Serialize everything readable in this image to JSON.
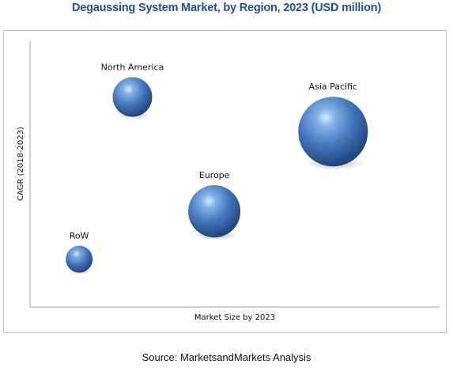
{
  "source": "Source: MarketsandMarkets Analysis",
  "chart_data": {
    "type": "bubble",
    "title": "Degaussing System Market, by Region, 2023 (USD million)",
    "xlabel": "Market Size by 2023",
    "ylabel": "CAGR (2018-2023)",
    "grid": false,
    "axis_tick_labels": false,
    "points": [
      {
        "label": "North America",
        "x": 25,
        "y": 79,
        "size": 25
      },
      {
        "label": "Asia Pacific",
        "x": 74,
        "y": 66,
        "size": 44
      },
      {
        "label": "Europe",
        "x": 45,
        "y": 36,
        "size": 33
      },
      {
        "label": "RoW",
        "x": 12,
        "y": 18,
        "size": 17
      }
    ],
    "xlim": [
      0,
      100
    ],
    "ylim": [
      0,
      100
    ],
    "bubble_color": "#3f73b8"
  }
}
